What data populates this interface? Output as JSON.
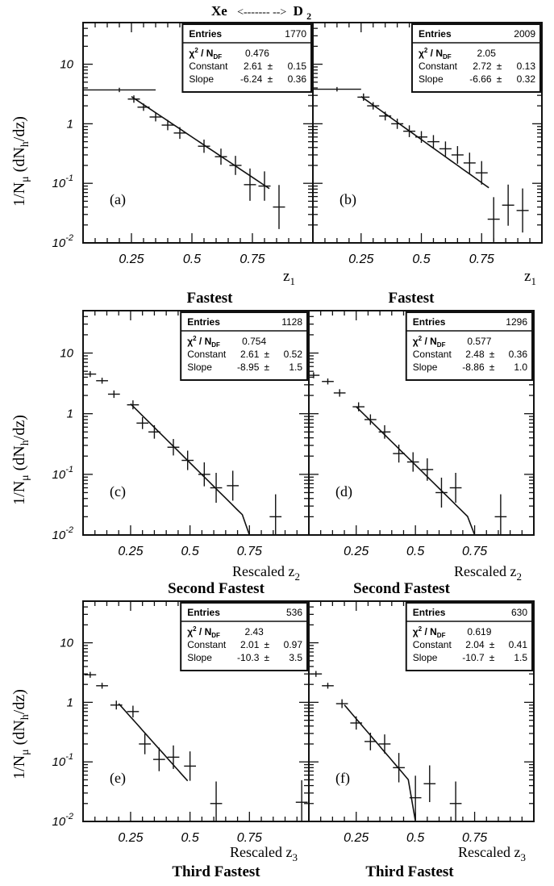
{
  "header": {
    "left": "Xe",
    "arrow": "<-------  -->",
    "right": "D",
    "right_sub": "2"
  },
  "y_axis": {
    "prefix": "1/N",
    "mu": "μ",
    "open": " (dN",
    "sub": "h",
    "close": "/dz)"
  },
  "ytick_labels": [
    {
      "mant": "10",
      "exp": "",
      "value": 10
    },
    {
      "mant": "1",
      "exp": "",
      "value": 1
    },
    {
      "mant": "10",
      "exp": "-1",
      "value": 0.1
    },
    {
      "mant": "10",
      "exp": "-2",
      "value": 0.01
    }
  ],
  "xtick_labels": [
    "0.25",
    "0.5",
    "0.75"
  ],
  "xtick_values": [
    0.25,
    0.5,
    0.75
  ],
  "stats_labels": {
    "entries": "Entries",
    "chi": "χ",
    "chi_sup": "2",
    "ndf": " / N",
    "ndf_sub": "DF",
    "constant": "Constant",
    "slope": "Slope",
    "pm": "±"
  },
  "rows": [
    {
      "xlabel_left": "",
      "xlabel_right": "",
      "xlabel_sub": "1",
      "xlabel_sym": "z",
      "caption": "Fastest"
    },
    {
      "xlabel_left": "Rescaled z",
      "xlabel_right": "Rescaled z",
      "xlabel_sub": "2",
      "xlabel_sym": "",
      "caption": "Second Fastest"
    },
    {
      "xlabel_left": "Rescaled z",
      "xlabel_right": "Rescaled z",
      "xlabel_sub": "3",
      "xlabel_sym": "",
      "caption": "Third Fastest"
    }
  ],
  "chart_data": [
    {
      "panel": "(a)",
      "type": "scatter",
      "yscale": "log",
      "xlim": [
        0.05,
        1.0
      ],
      "ylim": [
        0.01,
        50
      ],
      "stats": {
        "entries": "1770",
        "chi2_ndf": "0.476",
        "constant": "2.61",
        "constant_err": "0.15",
        "slope": "-6.24",
        "slope_err": "0.36"
      },
      "fit": {
        "constant": 2.61,
        "slope": -6.24,
        "x_range": [
          0.25,
          0.82
        ]
      },
      "points": [
        {
          "x": 0.2,
          "y": 3.7,
          "xerr": 0.15,
          "yerr": 0.03
        },
        {
          "x": 0.26,
          "y": 2.6,
          "xerr": 0.025,
          "yerr": 0.05
        },
        {
          "x": 0.3,
          "y": 1.9,
          "xerr": 0.025,
          "yerr": 0.05
        },
        {
          "x": 0.35,
          "y": 1.3,
          "xerr": 0.025,
          "yerr": 0.06
        },
        {
          "x": 0.4,
          "y": 0.95,
          "xerr": 0.025,
          "yerr": 0.07
        },
        {
          "x": 0.45,
          "y": 0.7,
          "xerr": 0.025,
          "yerr": 0.08
        },
        {
          "x": 0.55,
          "y": 0.42,
          "xerr": 0.025,
          "yerr": 0.09
        },
        {
          "x": 0.62,
          "y": 0.28,
          "xerr": 0.025,
          "yerr": 0.11
        },
        {
          "x": 0.68,
          "y": 0.2,
          "xerr": 0.025,
          "yerr": 0.13
        },
        {
          "x": 0.74,
          "y": 0.095,
          "xerr": 0.025,
          "yerr": 0.22
        },
        {
          "x": 0.8,
          "y": 0.09,
          "xerr": 0.025,
          "yerr": 0.2
        },
        {
          "x": 0.86,
          "y": 0.04,
          "xerr": 0.025,
          "yerr": 0.3
        }
      ]
    },
    {
      "panel": "(b)",
      "type": "scatter",
      "yscale": "log",
      "xlim": [
        0.05,
        1.0
      ],
      "ylim": [
        0.01,
        50
      ],
      "stats": {
        "entries": "2009",
        "chi2_ndf": "2.05",
        "constant": "2.72",
        "constant_err": "0.13",
        "slope": "-6.66",
        "slope_err": "0.32"
      },
      "fit": {
        "constant": 2.72,
        "slope": -6.66,
        "x_range": [
          0.25,
          0.78
        ]
      },
      "points": [
        {
          "x": 0.15,
          "y": 3.8,
          "xerr": 0.1,
          "yerr": 0.03
        },
        {
          "x": 0.26,
          "y": 2.8,
          "xerr": 0.025,
          "yerr": 0.05
        },
        {
          "x": 0.3,
          "y": 2.0,
          "xerr": 0.025,
          "yerr": 0.05
        },
        {
          "x": 0.35,
          "y": 1.35,
          "xerr": 0.025,
          "yerr": 0.06
        },
        {
          "x": 0.4,
          "y": 1.0,
          "xerr": 0.025,
          "yerr": 0.07
        },
        {
          "x": 0.45,
          "y": 0.75,
          "xerr": 0.025,
          "yerr": 0.08
        },
        {
          "x": 0.5,
          "y": 0.6,
          "xerr": 0.025,
          "yerr": 0.08
        },
        {
          "x": 0.55,
          "y": 0.5,
          "xerr": 0.025,
          "yerr": 0.09
        },
        {
          "x": 0.6,
          "y": 0.38,
          "xerr": 0.025,
          "yerr": 0.1
        },
        {
          "x": 0.65,
          "y": 0.3,
          "xerr": 0.025,
          "yerr": 0.12
        },
        {
          "x": 0.7,
          "y": 0.22,
          "xerr": 0.025,
          "yerr": 0.14
        },
        {
          "x": 0.75,
          "y": 0.15,
          "xerr": 0.025,
          "yerr": 0.16
        },
        {
          "x": 0.8,
          "y": 0.025,
          "xerr": 0.025,
          "yerr": 0.3
        },
        {
          "x": 0.86,
          "y": 0.043,
          "xerr": 0.025,
          "yerr": 0.28
        },
        {
          "x": 0.92,
          "y": 0.035,
          "xerr": 0.025,
          "yerr": 0.3
        }
      ]
    },
    {
      "panel": "(c)",
      "type": "scatter",
      "yscale": "log",
      "xlim": [
        0.05,
        1.0
      ],
      "ylim": [
        0.01,
        50
      ],
      "stats": {
        "entries": "1128",
        "chi2_ndf": "0.754",
        "constant": "2.61",
        "constant_err": "0.52",
        "slope": "-8.95",
        "slope_err": "1.5"
      },
      "fit": {
        "constant": 2.61,
        "slope": -8.95,
        "x_range": [
          0.25,
          0.72
        ],
        "drop_to": 0.75
      },
      "points": [
        {
          "x": 0.08,
          "y": 4.5,
          "xerr": 0.025,
          "yerr": 0.04
        },
        {
          "x": 0.13,
          "y": 3.5,
          "xerr": 0.025,
          "yerr": 0.04
        },
        {
          "x": 0.18,
          "y": 2.1,
          "xerr": 0.025,
          "yerr": 0.05
        },
        {
          "x": 0.26,
          "y": 1.4,
          "xerr": 0.025,
          "yerr": 0.06
        },
        {
          "x": 0.3,
          "y": 0.7,
          "xerr": 0.025,
          "yerr": 0.08
        },
        {
          "x": 0.35,
          "y": 0.5,
          "xerr": 0.025,
          "yerr": 0.09
        },
        {
          "x": 0.43,
          "y": 0.28,
          "xerr": 0.025,
          "yerr": 0.11
        },
        {
          "x": 0.49,
          "y": 0.17,
          "xerr": 0.025,
          "yerr": 0.13
        },
        {
          "x": 0.56,
          "y": 0.1,
          "xerr": 0.025,
          "yerr": 0.16
        },
        {
          "x": 0.61,
          "y": 0.06,
          "xerr": 0.025,
          "yerr": 0.2
        },
        {
          "x": 0.68,
          "y": 0.065,
          "xerr": 0.025,
          "yerr": 0.2
        },
        {
          "x": 0.86,
          "y": 0.02,
          "xerr": 0.025,
          "yerr": 0.3
        }
      ]
    },
    {
      "panel": "(d)",
      "type": "scatter",
      "yscale": "log",
      "xlim": [
        0.05,
        1.0
      ],
      "ylim": [
        0.01,
        50
      ],
      "stats": {
        "entries": "1296",
        "chi2_ndf": "0.577",
        "constant": "2.48",
        "constant_err": "0.36",
        "slope": "-8.86",
        "slope_err": "1.0"
      },
      "fit": {
        "constant": 2.48,
        "slope": -8.86,
        "x_range": [
          0.25,
          0.72
        ],
        "drop_to": 0.75
      },
      "points": [
        {
          "x": 0.07,
          "y": 4.3,
          "xerr": 0.025,
          "yerr": 0.04
        },
        {
          "x": 0.13,
          "y": 3.4,
          "xerr": 0.025,
          "yerr": 0.04
        },
        {
          "x": 0.18,
          "y": 2.2,
          "xerr": 0.025,
          "yerr": 0.05
        },
        {
          "x": 0.26,
          "y": 1.3,
          "xerr": 0.025,
          "yerr": 0.06
        },
        {
          "x": 0.31,
          "y": 0.8,
          "xerr": 0.025,
          "yerr": 0.07
        },
        {
          "x": 0.37,
          "y": 0.5,
          "xerr": 0.025,
          "yerr": 0.09
        },
        {
          "x": 0.43,
          "y": 0.22,
          "xerr": 0.025,
          "yerr": 0.12
        },
        {
          "x": 0.49,
          "y": 0.16,
          "xerr": 0.025,
          "yerr": 0.13
        },
        {
          "x": 0.55,
          "y": 0.12,
          "xerr": 0.025,
          "yerr": 0.15
        },
        {
          "x": 0.61,
          "y": 0.05,
          "xerr": 0.025,
          "yerr": 0.2
        },
        {
          "x": 0.67,
          "y": 0.06,
          "xerr": 0.025,
          "yerr": 0.2
        },
        {
          "x": 0.86,
          "y": 0.02,
          "xerr": 0.025,
          "yerr": 0.3
        }
      ]
    },
    {
      "panel": "(e)",
      "type": "scatter",
      "yscale": "log",
      "xlim": [
        0.05,
        1.0
      ],
      "ylim": [
        0.01,
        50
      ],
      "stats": {
        "entries": "536",
        "chi2_ndf": "2.43",
        "constant": "2.01",
        "constant_err": "0.97",
        "slope": "-10.3",
        "slope_err": "3.5"
      },
      "fit": {
        "constant": 2.01,
        "slope": -10.3,
        "x_range": [
          0.2,
          0.49
        ]
      },
      "points": [
        {
          "x": 0.08,
          "y": 2.9,
          "xerr": 0.025,
          "yerr": 0.04
        },
        {
          "x": 0.13,
          "y": 1.9,
          "xerr": 0.025,
          "yerr": 0.04
        },
        {
          "x": 0.19,
          "y": 0.9,
          "xerr": 0.025,
          "yerr": 0.06
        },
        {
          "x": 0.26,
          "y": 0.7,
          "xerr": 0.025,
          "yerr": 0.08
        },
        {
          "x": 0.31,
          "y": 0.2,
          "xerr": 0.025,
          "yerr": 0.14
        },
        {
          "x": 0.37,
          "y": 0.11,
          "xerr": 0.025,
          "yerr": 0.16
        },
        {
          "x": 0.43,
          "y": 0.12,
          "xerr": 0.025,
          "yerr": 0.16
        },
        {
          "x": 0.5,
          "y": 0.085,
          "xerr": 0.025,
          "yerr": 0.2
        },
        {
          "x": 0.61,
          "y": 0.02,
          "xerr": 0.025,
          "yerr": 0.3
        },
        {
          "x": 0.97,
          "y": 0.021,
          "xerr": 0.025,
          "yerr": 0.3
        }
      ]
    },
    {
      "panel": "(f)",
      "type": "scatter",
      "yscale": "log",
      "xlim": [
        0.05,
        1.0
      ],
      "ylim": [
        0.01,
        50
      ],
      "stats": {
        "entries": "630",
        "chi2_ndf": "0.619",
        "constant": "2.04",
        "constant_err": "0.41",
        "slope": "-10.7",
        "slope_err": "1.5"
      },
      "fit": {
        "constant": 2.04,
        "slope": -10.7,
        "x_range": [
          0.2,
          0.47
        ],
        "drop_to": 0.5
      },
      "points": [
        {
          "x": 0.08,
          "y": 3.0,
          "xerr": 0.025,
          "yerr": 0.04
        },
        {
          "x": 0.13,
          "y": 1.9,
          "xerr": 0.025,
          "yerr": 0.04
        },
        {
          "x": 0.19,
          "y": 0.95,
          "xerr": 0.025,
          "yerr": 0.06
        },
        {
          "x": 0.25,
          "y": 0.45,
          "xerr": 0.025,
          "yerr": 0.09
        },
        {
          "x": 0.31,
          "y": 0.22,
          "xerr": 0.025,
          "yerr": 0.12
        },
        {
          "x": 0.37,
          "y": 0.2,
          "xerr": 0.025,
          "yerr": 0.13
        },
        {
          "x": 0.43,
          "y": 0.08,
          "xerr": 0.025,
          "yerr": 0.2
        },
        {
          "x": 0.5,
          "y": 0.025,
          "xerr": 0.025,
          "yerr": 0.3
        },
        {
          "x": 0.56,
          "y": 0.043,
          "xerr": 0.025,
          "yerr": 0.25
        },
        {
          "x": 0.67,
          "y": 0.02,
          "xerr": 0.025,
          "yerr": 0.3
        }
      ]
    }
  ]
}
